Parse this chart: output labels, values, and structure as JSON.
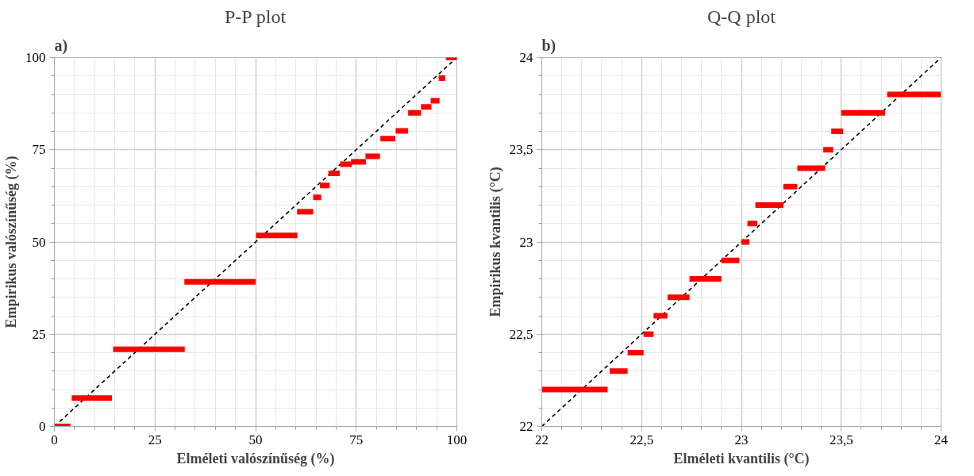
{
  "chart_data": [
    {
      "type": "line",
      "title": "P-P plot",
      "xlabel": "Elméleti valószínűség (%)",
      "ylabel": "Empirikus valószínűség (%)",
      "annotations": [
        "a)"
      ],
      "xlim": [
        0,
        100
      ],
      "ylim": [
        0,
        100
      ],
      "xticks": [
        0,
        25,
        50,
        75,
        100
      ],
      "yticks": [
        0,
        25,
        50,
        75,
        100
      ],
      "grid": true,
      "series": [
        {
          "color": "#000000",
          "line_style": "dashed",
          "x": [
            0,
            100
          ],
          "values": [
            0,
            100
          ]
        },
        {
          "color": "#ff0000",
          "line_style": "solid",
          "x": [
            0,
            4
          ],
          "values": [
            0,
            0
          ]
        },
        {
          "color": "#ff0000",
          "line_style": "solid",
          "x": [
            4.3,
            14.3
          ],
          "values": [
            7.7,
            7.7
          ]
        },
        {
          "color": "#ff0000",
          "line_style": "solid",
          "x": [
            14.6,
            32.4
          ],
          "values": [
            20.9,
            20.9
          ]
        },
        {
          "color": "#ff0000",
          "line_style": "solid",
          "x": [
            32.3,
            50
          ],
          "values": [
            39.2,
            39.2
          ]
        },
        {
          "color": "#ff0000",
          "line_style": "solid",
          "x": [
            50.1,
            60.4
          ],
          "values": [
            51.8,
            51.8
          ]
        },
        {
          "color": "#ff0000",
          "line_style": "solid",
          "x": [
            60.3,
            64.3
          ],
          "values": [
            58.2,
            58.2
          ]
        },
        {
          "color": "#ff0000",
          "line_style": "solid",
          "x": [
            64.3,
            66.3
          ],
          "values": [
            62.1,
            62.1
          ]
        },
        {
          "color": "#ff0000",
          "line_style": "solid",
          "x": [
            66,
            68.4
          ],
          "values": [
            65.3,
            65.3
          ]
        },
        {
          "color": "#ff0000",
          "line_style": "solid",
          "x": [
            68.1,
            70.9
          ],
          "values": [
            68.6,
            68.6
          ]
        },
        {
          "color": "#ff0000",
          "line_style": "solid",
          "x": [
            71,
            73.9
          ],
          "values": [
            71.1,
            71.1
          ]
        },
        {
          "color": "#ff0000",
          "line_style": "solid",
          "x": [
            73.7,
            77.4
          ],
          "values": [
            71.7,
            71.7
          ]
        },
        {
          "color": "#ff0000",
          "line_style": "solid",
          "x": [
            77.3,
            80.9
          ],
          "values": [
            73.2,
            73.2
          ]
        },
        {
          "color": "#ff0000",
          "line_style": "solid",
          "x": [
            81,
            84.7
          ],
          "values": [
            78,
            78
          ]
        },
        {
          "color": "#ff0000",
          "line_style": "solid",
          "x": [
            84.8,
            87.9
          ],
          "values": [
            80.1,
            80.1
          ]
        },
        {
          "color": "#ff0000",
          "line_style": "solid",
          "x": [
            87.9,
            91.1
          ],
          "values": [
            85,
            85
          ]
        },
        {
          "color": "#ff0000",
          "line_style": "solid",
          "x": [
            91.1,
            93.7
          ],
          "values": [
            86.6,
            86.6
          ]
        },
        {
          "color": "#ff0000",
          "line_style": "solid",
          "x": [
            93.5,
            95.7
          ],
          "values": [
            88.3,
            88.3
          ]
        },
        {
          "color": "#ff0000",
          "line_style": "solid",
          "x": [
            95.5,
            97.1
          ],
          "values": [
            94.4,
            94.4
          ]
        },
        {
          "color": "#ff0000",
          "line_style": "solid",
          "x": [
            97.3,
            100
          ],
          "values": [
            100,
            100
          ]
        }
      ]
    },
    {
      "type": "line",
      "title": "Q-Q plot",
      "xlabel": "Elméleti kvantilis (°C)",
      "ylabel": "Empirikus kvantilis (°C)",
      "annotations": [
        "b)"
      ],
      "xlim": [
        22,
        24
      ],
      "ylim": [
        22,
        24
      ],
      "xticks": [
        22,
        {
          "value": 22.5,
          "label": "22,5"
        },
        23,
        {
          "value": 23.5,
          "label": "23,5"
        },
        24
      ],
      "yticks": [
        22,
        {
          "value": 22.5,
          "label": "22,5"
        },
        23,
        {
          "value": 23.5,
          "label": "23,5"
        },
        24
      ],
      "grid": true,
      "series": [
        {
          "color": "#000000",
          "line_style": "dashed",
          "x": [
            22,
            24
          ],
          "values": [
            22,
            24
          ]
        },
        {
          "color": "#ff0000",
          "line_style": "solid",
          "x": [
            22,
            22.33
          ],
          "values": [
            22.2,
            22.2
          ]
        },
        {
          "color": "#ff0000",
          "line_style": "solid",
          "x": [
            22.34,
            22.43
          ],
          "values": [
            22.3,
            22.3
          ]
        },
        {
          "color": "#ff0000",
          "line_style": "solid",
          "x": [
            22.43,
            22.51
          ],
          "values": [
            22.4,
            22.4
          ]
        },
        {
          "color": "#ff0000",
          "line_style": "solid",
          "x": [
            22.51,
            22.56
          ],
          "values": [
            22.5,
            22.5
          ]
        },
        {
          "color": "#ff0000",
          "line_style": "solid",
          "x": [
            22.56,
            22.63
          ],
          "values": [
            22.6,
            22.6
          ]
        },
        {
          "color": "#ff0000",
          "line_style": "solid",
          "x": [
            22.63,
            22.74
          ],
          "values": [
            22.7,
            22.7
          ]
        },
        {
          "color": "#ff0000",
          "line_style": "solid",
          "x": [
            22.74,
            22.9
          ],
          "values": [
            22.8,
            22.8
          ]
        },
        {
          "color": "#ff0000",
          "line_style": "solid",
          "x": [
            22.9,
            22.99
          ],
          "values": [
            22.9,
            22.9
          ]
        },
        {
          "color": "#ff0000",
          "line_style": "solid",
          "x": [
            23,
            23.04
          ],
          "values": [
            23,
            23
          ]
        },
        {
          "color": "#ff0000",
          "line_style": "solid",
          "x": [
            23.03,
            23.08
          ],
          "values": [
            23.1,
            23.1
          ]
        },
        {
          "color": "#ff0000",
          "line_style": "solid",
          "x": [
            23.07,
            23.21
          ],
          "values": [
            23.2,
            23.2
          ]
        },
        {
          "color": "#ff0000",
          "line_style": "solid",
          "x": [
            23.21,
            23.28
          ],
          "values": [
            23.3,
            23.3
          ]
        },
        {
          "color": "#ff0000",
          "line_style": "solid",
          "x": [
            23.28,
            23.42
          ],
          "values": [
            23.4,
            23.4
          ]
        },
        {
          "color": "#ff0000",
          "line_style": "solid",
          "x": [
            23.41,
            23.46
          ],
          "values": [
            23.5,
            23.5
          ]
        },
        {
          "color": "#ff0000",
          "line_style": "solid",
          "x": [
            23.45,
            23.51
          ],
          "values": [
            23.6,
            23.6
          ]
        },
        {
          "color": "#ff0000",
          "line_style": "solid",
          "x": [
            23.5,
            23.72
          ],
          "values": [
            23.7,
            23.7
          ]
        },
        {
          "color": "#ff0000",
          "line_style": "solid",
          "x": [
            23.73,
            24
          ],
          "values": [
            23.8,
            23.8
          ]
        }
      ]
    }
  ]
}
